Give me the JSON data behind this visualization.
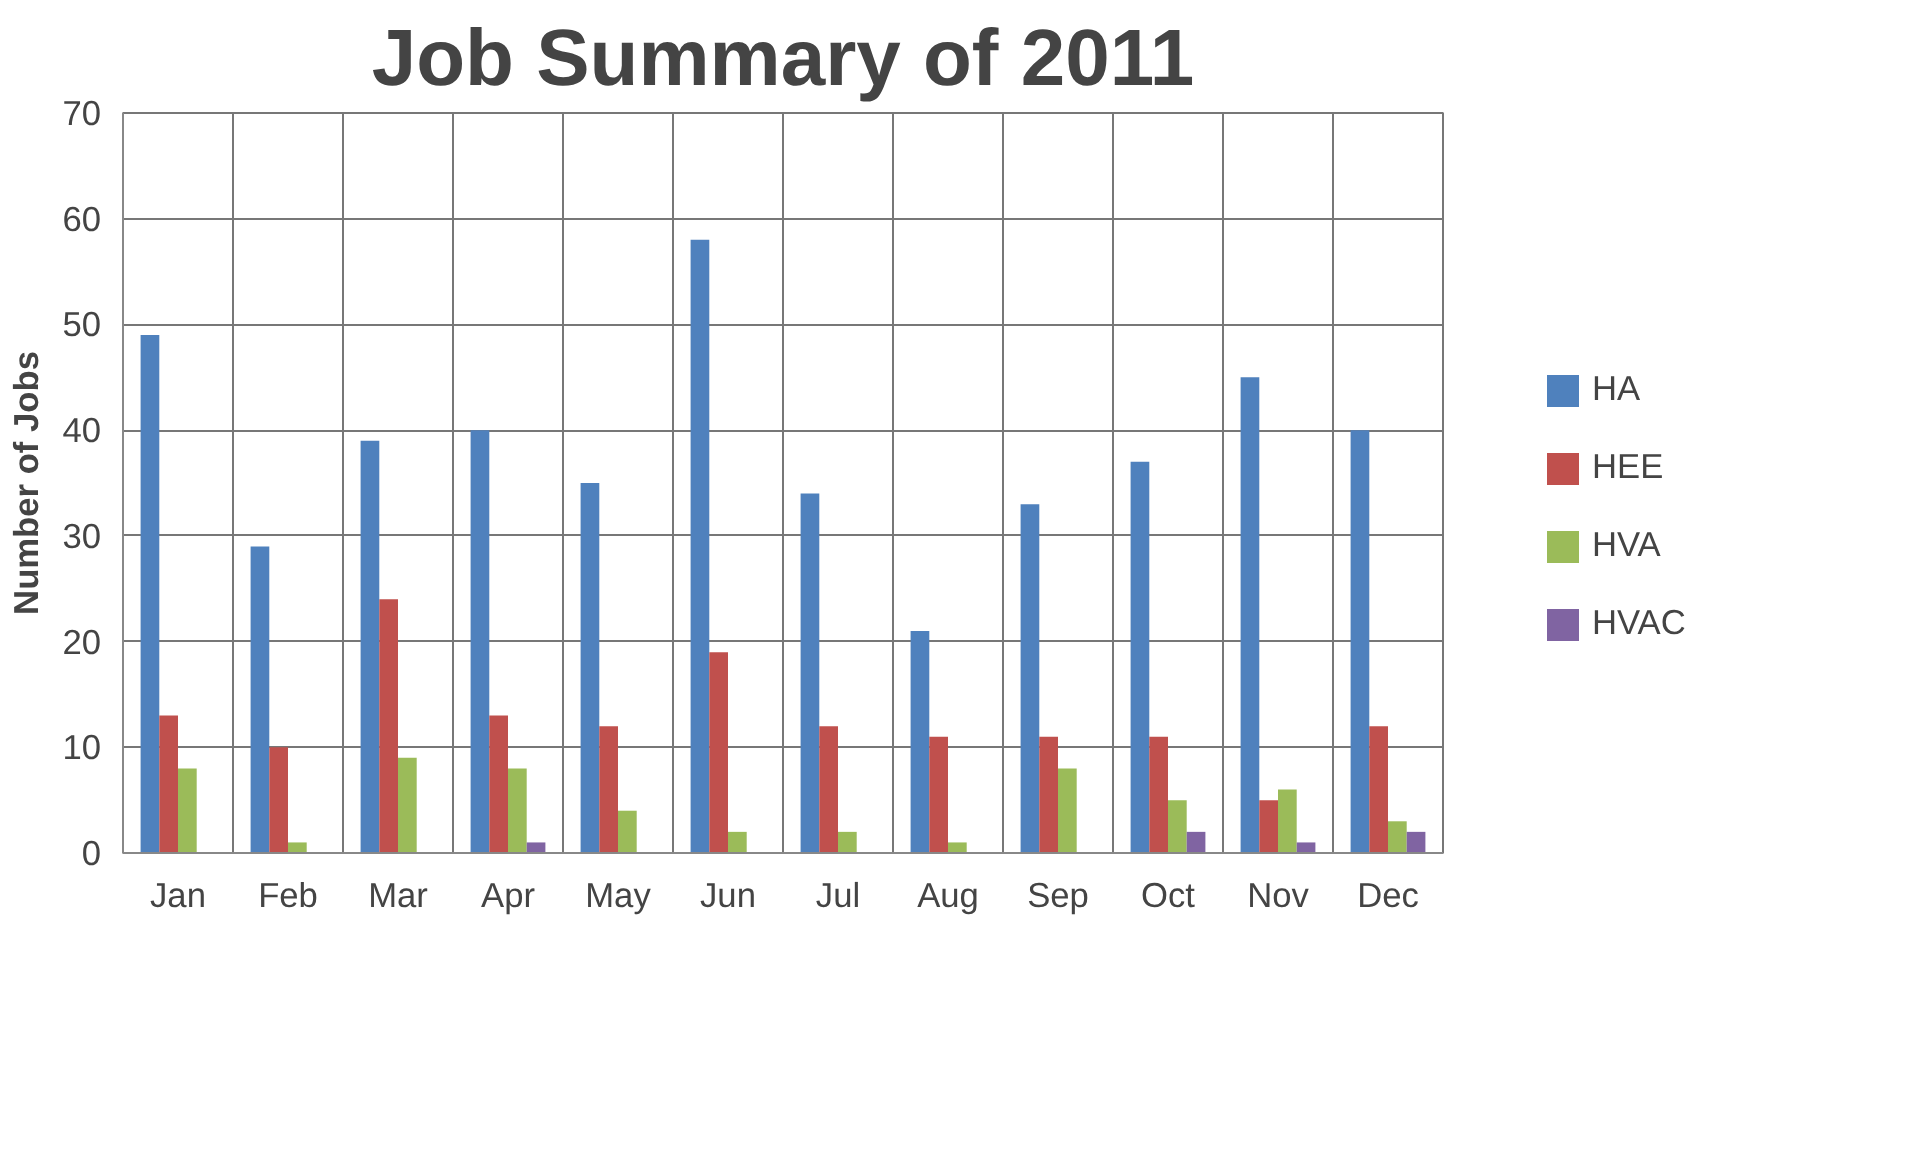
{
  "chart_data": {
    "type": "bar",
    "title": "Job Summary of 2011",
    "ylabel": "Number of Jobs",
    "categories": [
      "Jan",
      "Feb",
      "Mar",
      "Apr",
      "May",
      "Jun",
      "Jul",
      "Aug",
      "Sep",
      "Oct",
      "Nov",
      "Dec"
    ],
    "series": [
      {
        "name": "HA",
        "color": "#4f81bd",
        "values": [
          49,
          29,
          39,
          40,
          35,
          58,
          34,
          21,
          33,
          37,
          45,
          40
        ]
      },
      {
        "name": "HEE",
        "color": "#c0504d",
        "values": [
          13,
          10,
          24,
          13,
          12,
          19,
          12,
          11,
          11,
          11,
          5,
          12
        ]
      },
      {
        "name": "HVA",
        "color": "#9bbb59",
        "values": [
          8,
          1,
          9,
          8,
          4,
          2,
          2,
          1,
          8,
          5,
          6,
          3
        ]
      },
      {
        "name": "HVAC",
        "color": "#8064a2",
        "values": [
          0,
          0,
          0,
          1,
          0,
          0,
          0,
          0,
          0,
          2,
          1,
          2
        ]
      }
    ],
    "ylim": [
      0,
      70
    ],
    "yticks": [
      0,
      10,
      20,
      30,
      40,
      50,
      60,
      70
    ],
    "grid": true,
    "legend": "right"
  }
}
